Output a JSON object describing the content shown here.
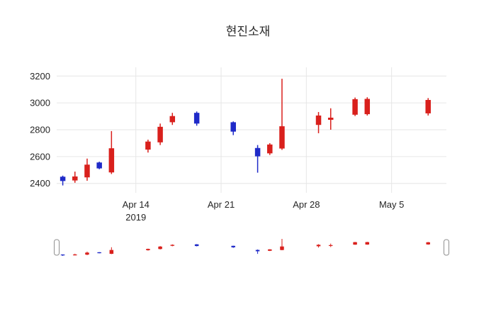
{
  "chart_data": {
    "type": "candlestick",
    "title": "현진소재",
    "increasing_color": "#d9201c",
    "decreasing_color": "#1f2ac8",
    "grid": true,
    "grid_color": "#e6e6e6",
    "axis_text_color": "#262626",
    "legend_position": "none",
    "ylim": [
      2330,
      3265
    ],
    "y_ticks": [
      2400,
      2600,
      2800,
      3000,
      3200
    ],
    "xlim": [
      "2019-04-07T12:00:00Z",
      "2019-05-09T12:00:00Z"
    ],
    "x_ticks": [
      {
        "date": "2019-04-14",
        "label": "Apr 14",
        "sublabel": "2019"
      },
      {
        "date": "2019-04-21",
        "label": "Apr 21",
        "sublabel": ""
      },
      {
        "date": "2019-04-28",
        "label": "Apr 28",
        "sublabel": ""
      },
      {
        "date": "2019-05-05",
        "label": "May 5",
        "sublabel": ""
      }
    ],
    "rangeslider": true,
    "candles": [
      {
        "date": "2019-04-08",
        "open": 2450,
        "high": 2458,
        "low": 2385,
        "close": 2418
      },
      {
        "date": "2019-04-09",
        "open": 2422,
        "high": 2488,
        "low": 2405,
        "close": 2452
      },
      {
        "date": "2019-04-10",
        "open": 2445,
        "high": 2585,
        "low": 2420,
        "close": 2540
      },
      {
        "date": "2019-04-11",
        "open": 2556,
        "high": 2562,
        "low": 2506,
        "close": 2512
      },
      {
        "date": "2019-04-12",
        "open": 2482,
        "high": 2790,
        "low": 2470,
        "close": 2662
      },
      {
        "date": "2019-04-15",
        "open": 2652,
        "high": 2726,
        "low": 2630,
        "close": 2712
      },
      {
        "date": "2019-04-16",
        "open": 2706,
        "high": 2846,
        "low": 2686,
        "close": 2822
      },
      {
        "date": "2019-04-17",
        "open": 2856,
        "high": 2926,
        "low": 2836,
        "close": 2902
      },
      {
        "date": "2019-04-19",
        "open": 2926,
        "high": 2936,
        "low": 2830,
        "close": 2846
      },
      {
        "date": "2019-04-22",
        "open": 2856,
        "high": 2862,
        "low": 2760,
        "close": 2786
      },
      {
        "date": "2019-04-24",
        "open": 2664,
        "high": 2686,
        "low": 2480,
        "close": 2602
      },
      {
        "date": "2019-04-25",
        "open": 2624,
        "high": 2700,
        "low": 2612,
        "close": 2690
      },
      {
        "date": "2019-04-26",
        "open": 2660,
        "high": 3180,
        "low": 2650,
        "close": 2826
      },
      {
        "date": "2019-04-29",
        "open": 2836,
        "high": 2932,
        "low": 2774,
        "close": 2906
      },
      {
        "date": "2019-04-30",
        "open": 2874,
        "high": 2960,
        "low": 2800,
        "close": 2890
      },
      {
        "date": "2019-05-02",
        "open": 2912,
        "high": 3040,
        "low": 2902,
        "close": 3028
      },
      {
        "date": "2019-05-03",
        "open": 2916,
        "high": 3042,
        "low": 2906,
        "close": 3030
      },
      {
        "date": "2019-05-08",
        "open": 2922,
        "high": 3036,
        "low": 2906,
        "close": 3022
      }
    ]
  }
}
